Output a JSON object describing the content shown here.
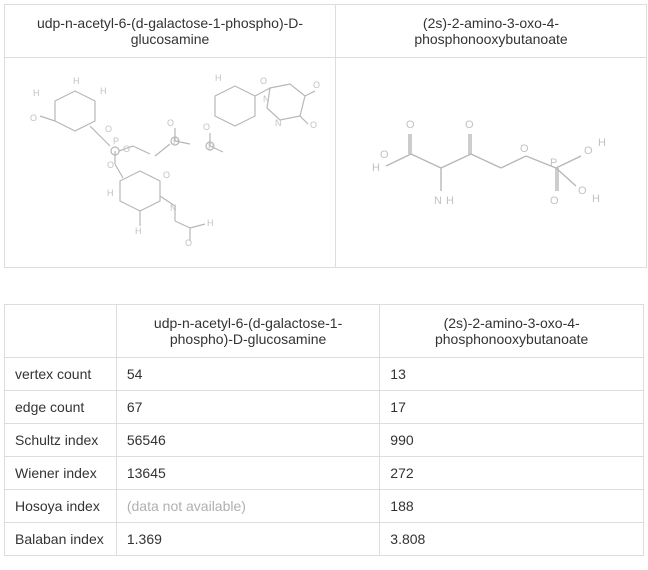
{
  "compounds": {
    "a": {
      "name": "udp-n-acetyl-6-(d-galactose-1-phospho)-D-glucosamine"
    },
    "b": {
      "name": "(2s)-2-amino-3-oxo-4-phosphonooxybutanoate"
    }
  },
  "properties": {
    "rows": [
      {
        "label": "vertex count",
        "a": "54",
        "b": "13"
      },
      {
        "label": "edge count",
        "a": "67",
        "b": "17"
      },
      {
        "label": "Schultz index",
        "a": "56546",
        "b": "990"
      },
      {
        "label": "Wiener index",
        "a": "13645",
        "b": "272"
      },
      {
        "label": "Hosoya index",
        "a": "(data not available)",
        "a_unavailable": true,
        "b": "188"
      },
      {
        "label": "Balaban index",
        "a": "1.369",
        "b": "3.808"
      }
    ]
  },
  "style": {
    "border_color": "#dddddd",
    "text_color": "#333333",
    "unavailable_color": "#b0b0b0",
    "background": "#ffffff",
    "font_size": 14,
    "molecule_stroke": "#888888",
    "molecule_label": "#999999"
  }
}
